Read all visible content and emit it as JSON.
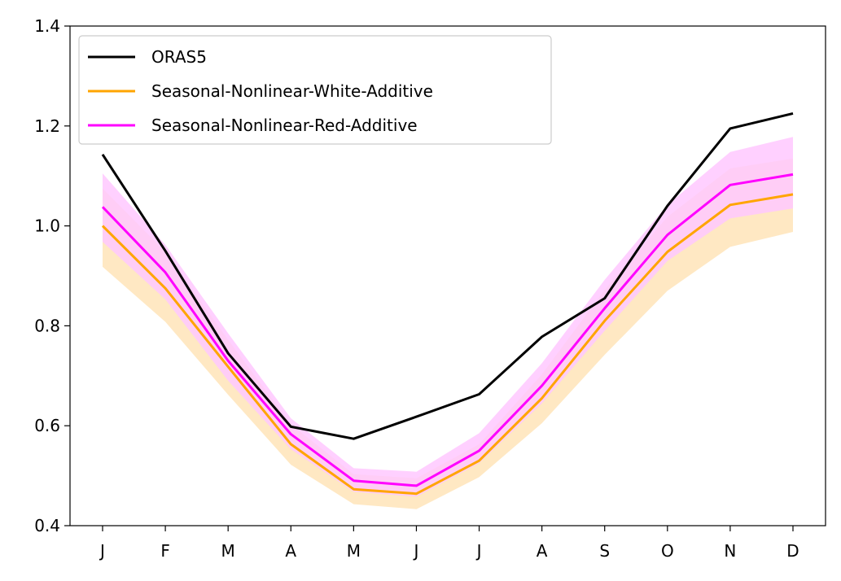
{
  "chart_data": {
    "type": "line",
    "title": "",
    "xlabel": "",
    "ylabel": "",
    "categories": [
      "J",
      "F",
      "M",
      "A",
      "M",
      "J",
      "J",
      "A",
      "S",
      "O",
      "N",
      "D"
    ],
    "ylim": [
      0.4,
      1.4
    ],
    "yticks": [
      "0.4",
      "0.6",
      "0.8",
      "1.0",
      "1.2",
      "1.4"
    ],
    "grid": false,
    "legend_position": "top-left",
    "series": [
      {
        "name": "ORAS5",
        "color": "#000000",
        "values": [
          1.143,
          0.95,
          0.745,
          0.598,
          0.574,
          0.618,
          0.663,
          0.778,
          0.855,
          1.04,
          1.195,
          1.225
        ]
      },
      {
        "name": "Seasonal-Nonlinear-White-Additive",
        "color": "#ffa500",
        "band_color": "#ffe4b8",
        "values": [
          1.0,
          0.875,
          0.718,
          0.563,
          0.473,
          0.464,
          0.53,
          0.655,
          0.81,
          0.948,
          1.042,
          1.063
        ],
        "band_lower": [
          0.918,
          0.808,
          0.662,
          0.522,
          0.443,
          0.433,
          0.497,
          0.605,
          0.742,
          0.87,
          0.958,
          0.988
        ],
        "band_upper": [
          1.075,
          0.948,
          0.772,
          0.603,
          0.503,
          0.495,
          0.563,
          0.703,
          0.872,
          1.018,
          1.115,
          1.135
        ]
      },
      {
        "name": "Seasonal-Nonlinear-Red-Additive",
        "color": "#ff00ff",
        "band_color": "#ffc8ff",
        "values": [
          1.038,
          0.907,
          0.73,
          0.583,
          0.49,
          0.48,
          0.55,
          0.68,
          0.835,
          0.982,
          1.082,
          1.103
        ],
        "band_lower": [
          0.968,
          0.853,
          0.69,
          0.553,
          0.468,
          0.458,
          0.525,
          0.645,
          0.79,
          0.93,
          1.015,
          1.035
        ],
        "band_upper": [
          1.105,
          0.962,
          0.785,
          0.615,
          0.515,
          0.508,
          0.585,
          0.725,
          0.892,
          1.042,
          1.148,
          1.178
        ]
      }
    ]
  }
}
